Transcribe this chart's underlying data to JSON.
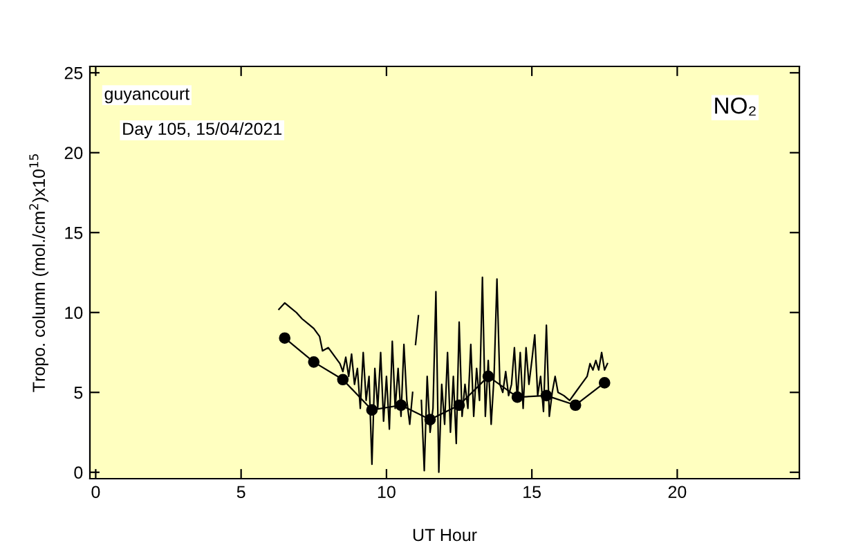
{
  "chart_data": {
    "type": "line",
    "xlabel": "UT Hour",
    "ylabel": "Tropo. column (mol./cm$^{2}$)x10$^{15}$",
    "annotations": [
      "guyancourt",
      "Day 105, 15/04/2021",
      "NO₂"
    ],
    "xlim": [
      -0.2,
      24.2
    ],
    "ylim": [
      -0.4,
      25.4
    ],
    "xticks": [
      0,
      5,
      10,
      15,
      20
    ],
    "yticks": [
      0,
      5,
      10,
      15,
      20,
      25
    ],
    "grid": false,
    "legend": false,
    "series": [
      {
        "color": "#000000",
        "marker": "none",
        "x": [
          6.3,
          6.5,
          6.7,
          6.9,
          7.1,
          7.3,
          7.5,
          7.7,
          7.8,
          8.0,
          8.2,
          8.4,
          8.5,
          8.6,
          8.7,
          8.8,
          8.9,
          9.0,
          9.1,
          9.2,
          9.3,
          9.4,
          9.5,
          9.6,
          9.7,
          9.8,
          9.9,
          10.0,
          10.1,
          10.2,
          10.3,
          10.4,
          10.5,
          10.6,
          10.7,
          10.8,
          10.9,
          10.95,
          11.0,
          11.1,
          11.15,
          11.2,
          11.3,
          11.4,
          11.5,
          11.6,
          11.7,
          11.8,
          11.9,
          12.0,
          12.1,
          12.2,
          12.3,
          12.4,
          12.5,
          12.6,
          12.7,
          12.8,
          12.9,
          13.0,
          13.1,
          13.2,
          13.3,
          13.4,
          13.5,
          13.6,
          13.7,
          13.8,
          13.9,
          14.0,
          14.1,
          14.2,
          14.3,
          14.4,
          14.5,
          14.6,
          14.7,
          14.8,
          14.9,
          15.0,
          15.1,
          15.2,
          15.3,
          15.4,
          15.5,
          15.6,
          15.7,
          15.8,
          15.9,
          16.1,
          16.3,
          16.5,
          16.7,
          16.9,
          17.0,
          17.1,
          17.2,
          17.3,
          17.4,
          17.5,
          17.6
        ],
        "values": [
          10.2,
          10.6,
          10.3,
          10.0,
          9.6,
          9.3,
          9.0,
          8.5,
          7.6,
          7.8,
          7.3,
          6.8,
          6.3,
          7.2,
          6.0,
          7.4,
          5.5,
          6.5,
          4.0,
          7.5,
          4.5,
          6.0,
          0.5,
          6.5,
          4.0,
          7.5,
          3.2,
          6.0,
          2.7,
          8.2,
          4.0,
          6.5,
          3.5,
          8.0,
          4.5,
          3.0,
          5.0,
          null,
          8.0,
          9.8,
          null,
          4.5,
          0.1,
          6.0,
          2.5,
          4.0,
          11.3,
          0.0,
          5.5,
          3.0,
          7.5,
          2.5,
          6.0,
          1.8,
          9.4,
          3.5,
          5.5,
          4.0,
          8.0,
          3.5,
          6.5,
          4.5,
          12.2,
          3.5,
          7.0,
          3.0,
          6.0,
          12.1,
          5.5,
          5.0,
          6.3,
          4.8,
          5.5,
          7.8,
          4.5,
          7.5,
          4.0,
          7.8,
          5.5,
          7.0,
          8.6,
          4.8,
          6.0,
          3.8,
          9.2,
          3.5,
          5.0,
          6.0,
          5.0,
          4.8,
          4.5,
          5.0,
          5.5,
          6.0,
          6.8,
          6.4,
          7.0,
          6.4,
          7.5,
          6.4,
          6.8
        ]
      },
      {
        "color": "#000000",
        "marker": "circle",
        "x": [
          6.5,
          7.5,
          8.5,
          9.5,
          10.5,
          11.5,
          12.5,
          13.5,
          14.5,
          15.5,
          16.5,
          17.5
        ],
        "values": [
          8.4,
          6.9,
          5.8,
          3.9,
          4.2,
          3.3,
          4.2,
          6.0,
          4.7,
          4.8,
          4.2,
          5.6
        ]
      }
    ]
  }
}
